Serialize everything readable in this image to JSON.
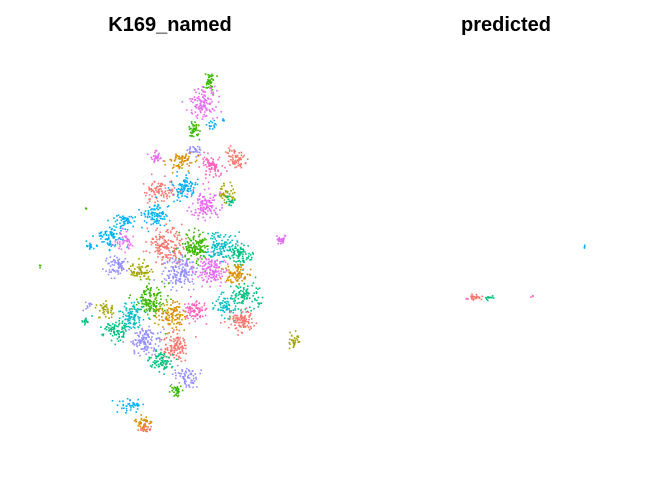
{
  "chart_data": [
    {
      "type": "scatter",
      "title": "K169_named",
      "description_of_content": "",
      "palette": [
        "#F8766D",
        "#D89000",
        "#A3A500",
        "#39B600",
        "#00BF7D",
        "#00BFC4",
        "#00B0F6",
        "#9590FF",
        "#E76BF3",
        "#FF62BC"
      ],
      "axes_visible": false,
      "legend": "none"
    },
    {
      "type": "scatter",
      "title": "predicted",
      "palette": [
        "#F8766D",
        "#00BF7D",
        "#00B0F6",
        "#FF62BC"
      ],
      "axes_visible": false,
      "legend": "none"
    }
  ]
}
